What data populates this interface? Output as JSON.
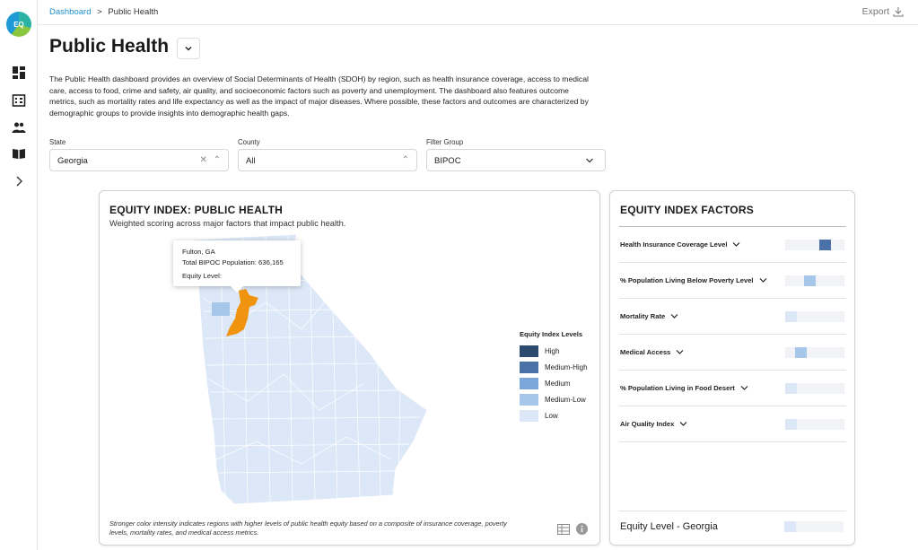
{
  "sidebar": {
    "logo_text": "EQ",
    "items": [
      {
        "name": "dashboard-icon"
      },
      {
        "name": "building-icon"
      },
      {
        "name": "people-icon"
      },
      {
        "name": "book-icon"
      },
      {
        "name": "chevron-right-icon"
      }
    ]
  },
  "breadcrumb": {
    "root": "Dashboard",
    "separator": ">",
    "current": "Public Health"
  },
  "header": {
    "export_label": "Export",
    "title": "Public Health",
    "description": "The Public Health dashboard provides an overview of Social Determinants of Health (SDOH) by region, such as health insurance coverage, access to medical care, access to food, crime and safety, air quality, and socioeconomic factors such as poverty and unemployment. The dashboard also features outcome metrics, such as mortality rates and life expectancy as well as the impact of major diseases. Where possible, these factors and outcomes are characterized by demographic groups to provide insights into demographic health gaps."
  },
  "filters": {
    "state": {
      "label": "State",
      "value": "Georgia"
    },
    "county": {
      "label": "County",
      "value": "All"
    },
    "group": {
      "label": "Filter Group",
      "value": "BIPOC"
    }
  },
  "map_card": {
    "title": "EQUITY INDEX: PUBLIC HEALTH",
    "subtitle": "Weighted scoring across major factors that impact public health.",
    "tooltip": {
      "county": "Fulton, GA",
      "population": "Total BIPOC Population: 636,165",
      "equity_label": "Equity Level:"
    },
    "legend": {
      "title": "Equity Index Levels",
      "levels": [
        {
          "label": "High",
          "color": "#2c4a6e"
        },
        {
          "label": "Medium-High",
          "color": "#4a72a8"
        },
        {
          "label": "Medium",
          "color": "#7aa6da"
        },
        {
          "label": "Medium-Low",
          "color": "#a6c6ea"
        },
        {
          "label": "Low",
          "color": "#dce8f7"
        }
      ]
    },
    "footnote": "Stronger color intensity indicates regions with higher levels of public health equity based on a composite of insurance coverage, poverty levels, mortality rates, and medical access metrics.",
    "highlight_color": "#f0940f"
  },
  "factors_card": {
    "title": "EQUITY INDEX FACTORS",
    "factors": [
      {
        "label": "Health Insurance Coverage Level",
        "level": 0.72,
        "color": "#4a72a8"
      },
      {
        "label": "% Population Living Below Poverty Level",
        "level": 0.4,
        "color": "#a6c6ea"
      },
      {
        "label": "Mortality Rate",
        "level": 0.0,
        "color": "#dce8f7"
      },
      {
        "label": "Medical Access",
        "level": 0.2,
        "color": "#a6c6ea"
      },
      {
        "label": "% Population Living in Food Desert",
        "level": 0.0,
        "color": "#dce8f7"
      },
      {
        "label": "Air Quality Index",
        "level": 0.0,
        "color": "#dce8f7"
      }
    ],
    "equity_level_label": "Equity Level - Georgia",
    "equity_level": 0.0
  }
}
